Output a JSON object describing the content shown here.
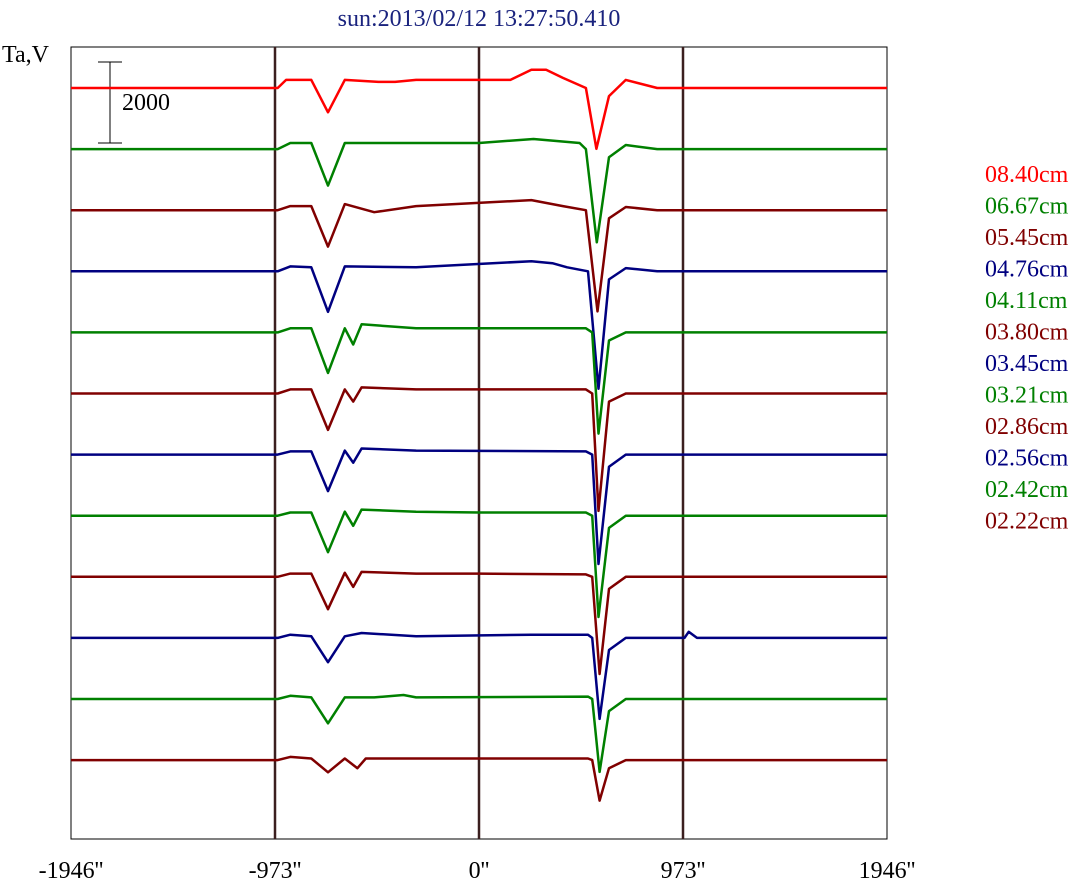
{
  "chart_data": {
    "type": "line",
    "title": "sun:2013/02/12 13:27:50.410",
    "ylabel": "Ta,V",
    "xlabel": "",
    "x_ticks": [
      "-1946''",
      "-973''",
      "0''",
      "973''",
      "1946''"
    ],
    "x_tick_values": [
      -1946,
      -973,
      0,
      973,
      1946
    ],
    "xlim": [
      -1946,
      1946
    ],
    "vertical_lines": [
      -973,
      0,
      973
    ],
    "scale_bar_label": "2000",
    "scale_bar_value": 2000,
    "grid": false,
    "legend_placement": "right",
    "series": [
      {
        "name": "08.40cm",
        "color": "#ff0000",
        "baseline": 0,
        "offset": 0,
        "points": [
          [
            -1946,
            0
          ],
          [
            -960,
            0
          ],
          [
            -920,
            200
          ],
          [
            -800,
            200
          ],
          [
            -720,
            -600
          ],
          [
            -640,
            200
          ],
          [
            -480,
            150
          ],
          [
            -400,
            150
          ],
          [
            -300,
            200
          ],
          [
            150,
            200
          ],
          [
            250,
            450
          ],
          [
            320,
            450
          ],
          [
            400,
            250
          ],
          [
            510,
            0
          ],
          [
            560,
            -1500
          ],
          [
            620,
            -200
          ],
          [
            700,
            200
          ],
          [
            850,
            0
          ],
          [
            1946,
            0
          ]
        ]
      },
      {
        "name": "06.67cm",
        "color": "#008000",
        "baseline": 0,
        "offset": -1,
        "points": [
          [
            -1946,
            0
          ],
          [
            -960,
            0
          ],
          [
            -900,
            150
          ],
          [
            -800,
            150
          ],
          [
            -720,
            -900
          ],
          [
            -640,
            150
          ],
          [
            -300,
            150
          ],
          [
            0,
            150
          ],
          [
            260,
            250
          ],
          [
            480,
            150
          ],
          [
            510,
            0
          ],
          [
            562,
            -2300
          ],
          [
            620,
            -200
          ],
          [
            700,
            100
          ],
          [
            850,
            0
          ],
          [
            1946,
            0
          ]
        ]
      },
      {
        "name": "05.45cm",
        "color": "#800000",
        "baseline": 0,
        "offset": -2,
        "points": [
          [
            -1946,
            0
          ],
          [
            -960,
            0
          ],
          [
            -900,
            100
          ],
          [
            -800,
            100
          ],
          [
            -720,
            -900
          ],
          [
            -640,
            150
          ],
          [
            -500,
            -50
          ],
          [
            -300,
            100
          ],
          [
            250,
            250
          ],
          [
            400,
            100
          ],
          [
            510,
            0
          ],
          [
            565,
            -2500
          ],
          [
            620,
            -200
          ],
          [
            700,
            80
          ],
          [
            850,
            0
          ],
          [
            1946,
            0
          ]
        ]
      },
      {
        "name": "04.76cm",
        "color": "#000080",
        "baseline": 0,
        "offset": -3,
        "points": [
          [
            -1946,
            0
          ],
          [
            -960,
            0
          ],
          [
            -900,
            120
          ],
          [
            -800,
            100
          ],
          [
            -720,
            -1000
          ],
          [
            -640,
            120
          ],
          [
            -300,
            100
          ],
          [
            250,
            250
          ],
          [
            350,
            200
          ],
          [
            420,
            100
          ],
          [
            520,
            0
          ],
          [
            570,
            -2900
          ],
          [
            620,
            -200
          ],
          [
            700,
            80
          ],
          [
            850,
            0
          ],
          [
            1946,
            0
          ]
        ]
      },
      {
        "name": "04.11cm",
        "color": "#008000",
        "baseline": 0,
        "offset": -4,
        "points": [
          [
            -1946,
            0
          ],
          [
            -960,
            0
          ],
          [
            -900,
            100
          ],
          [
            -800,
            100
          ],
          [
            -720,
            -1000
          ],
          [
            -640,
            100
          ],
          [
            -600,
            -300
          ],
          [
            -560,
            200
          ],
          [
            -300,
            100
          ],
          [
            510,
            100
          ],
          [
            540,
            0
          ],
          [
            570,
            -2500
          ],
          [
            620,
            -200
          ],
          [
            700,
            0
          ],
          [
            850,
            0
          ],
          [
            1946,
            0
          ]
        ]
      },
      {
        "name": "03.80cm",
        "color": "#800000",
        "baseline": 0,
        "offset": -5,
        "points": [
          [
            -1946,
            0
          ],
          [
            -960,
            0
          ],
          [
            -900,
            100
          ],
          [
            -800,
            100
          ],
          [
            -720,
            -900
          ],
          [
            -640,
            100
          ],
          [
            -600,
            -200
          ],
          [
            -560,
            150
          ],
          [
            -300,
            100
          ],
          [
            510,
            100
          ],
          [
            540,
            0
          ],
          [
            570,
            -2900
          ],
          [
            620,
            -200
          ],
          [
            700,
            0
          ],
          [
            850,
            0
          ],
          [
            1946,
            0
          ]
        ]
      },
      {
        "name": "03.45cm",
        "color": "#000080",
        "baseline": 0,
        "offset": -6,
        "points": [
          [
            -1946,
            0
          ],
          [
            -960,
            0
          ],
          [
            -900,
            80
          ],
          [
            -800,
            80
          ],
          [
            -720,
            -900
          ],
          [
            -640,
            100
          ],
          [
            -600,
            -200
          ],
          [
            -560,
            150
          ],
          [
            -300,
            100
          ],
          [
            510,
            80
          ],
          [
            540,
            0
          ],
          [
            570,
            -2700
          ],
          [
            620,
            -300
          ],
          [
            700,
            0
          ],
          [
            850,
            0
          ],
          [
            1946,
            0
          ]
        ]
      },
      {
        "name": "03.21cm",
        "color": "#008000",
        "baseline": 0,
        "offset": -7,
        "points": [
          [
            -1946,
            0
          ],
          [
            -960,
            0
          ],
          [
            -900,
            80
          ],
          [
            -800,
            80
          ],
          [
            -720,
            -900
          ],
          [
            -640,
            100
          ],
          [
            -600,
            -250
          ],
          [
            -560,
            150
          ],
          [
            -300,
            100
          ],
          [
            0,
            80
          ],
          [
            510,
            80
          ],
          [
            540,
            0
          ],
          [
            570,
            -2500
          ],
          [
            620,
            -300
          ],
          [
            700,
            0
          ],
          [
            850,
            0
          ],
          [
            1946,
            0
          ]
        ]
      },
      {
        "name": "02.86cm",
        "color": "#800000",
        "baseline": 0,
        "offset": -8,
        "points": [
          [
            -1946,
            0
          ],
          [
            -960,
            0
          ],
          [
            -900,
            80
          ],
          [
            -800,
            80
          ],
          [
            -720,
            -800
          ],
          [
            -640,
            100
          ],
          [
            -600,
            -250
          ],
          [
            -560,
            120
          ],
          [
            -300,
            80
          ],
          [
            0,
            80
          ],
          [
            510,
            60
          ],
          [
            540,
            0
          ],
          [
            575,
            -2400
          ],
          [
            620,
            -300
          ],
          [
            700,
            0
          ],
          [
            850,
            0
          ],
          [
            1946,
            0
          ]
        ]
      },
      {
        "name": "02.56cm",
        "color": "#000080",
        "baseline": 0,
        "offset": -9,
        "points": [
          [
            -1946,
            0
          ],
          [
            -960,
            0
          ],
          [
            -900,
            80
          ],
          [
            -800,
            40
          ],
          [
            -720,
            -600
          ],
          [
            -640,
            40
          ],
          [
            -560,
            120
          ],
          [
            -300,
            40
          ],
          [
            250,
            80
          ],
          [
            520,
            80
          ],
          [
            540,
            0
          ],
          [
            575,
            -2000
          ],
          [
            620,
            -300
          ],
          [
            700,
            0
          ],
          [
            980,
            0
          ],
          [
            1000,
            150
          ],
          [
            1040,
            0
          ],
          [
            1946,
            0
          ]
        ]
      },
      {
        "name": "02.42cm",
        "color": "#008000",
        "baseline": 0,
        "offset": -10,
        "points": [
          [
            -1946,
            0
          ],
          [
            -960,
            0
          ],
          [
            -900,
            80
          ],
          [
            -800,
            40
          ],
          [
            -720,
            -600
          ],
          [
            -640,
            40
          ],
          [
            -500,
            40
          ],
          [
            -360,
            100
          ],
          [
            -300,
            40
          ],
          [
            520,
            60
          ],
          [
            540,
            0
          ],
          [
            575,
            -1800
          ],
          [
            620,
            -300
          ],
          [
            700,
            0
          ],
          [
            850,
            0
          ],
          [
            1946,
            0
          ]
        ]
      },
      {
        "name": "02.22cm",
        "color": "#800000",
        "baseline": 0,
        "offset": -11,
        "points": [
          [
            -1946,
            0
          ],
          [
            -960,
            0
          ],
          [
            -900,
            80
          ],
          [
            -800,
            40
          ],
          [
            -720,
            -300
          ],
          [
            -640,
            40
          ],
          [
            -580,
            -200
          ],
          [
            -540,
            40
          ],
          [
            -300,
            40
          ],
          [
            520,
            40
          ],
          [
            540,
            0
          ],
          [
            575,
            -1000
          ],
          [
            620,
            -200
          ],
          [
            700,
            0
          ],
          [
            850,
            0
          ],
          [
            1946,
            0
          ]
        ]
      }
    ]
  }
}
